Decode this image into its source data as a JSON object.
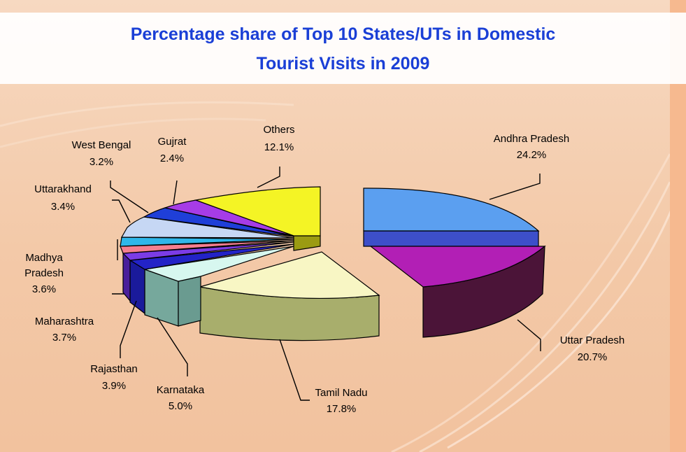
{
  "title": {
    "line1": "Percentage share of Top 10 States/UTs in Domestic",
    "line2": "Tourist Visits in 2009"
  },
  "chart_data": {
    "type": "pie",
    "title": "Percentage share of Top 10 States/UTs in Domestic Tourist Visits in 2009",
    "unit": "%",
    "slices": [
      {
        "name": "Andhra Pradesh",
        "value": 24.2,
        "label": "24.2%",
        "color": "#5b9ff0"
      },
      {
        "name": "Uttar Pradesh",
        "value": 20.7,
        "label": "20.7%",
        "color": "#b21fb5"
      },
      {
        "name": "Tamil Nadu",
        "value": 17.8,
        "label": "17.8%",
        "color": "#f8f6c4"
      },
      {
        "name": "Karnataka",
        "value": 5.0,
        "label": "5.0%",
        "color": "#d7f7ef"
      },
      {
        "name": "Rajasthan",
        "value": 3.9,
        "label": "3.9%",
        "color": "#2323c7"
      },
      {
        "name": "Maharashtra",
        "value": 3.7,
        "label": "3.7%",
        "color": "#7b3ce6"
      },
      {
        "name": "Madhya Pradesh",
        "value": 3.6,
        "label": "3.6%",
        "color": "#f57f8f"
      },
      {
        "name": "Uttarakhand",
        "value": 3.4,
        "label": "3.4%",
        "color": "#2fb7ea"
      },
      {
        "name": "West Bengal",
        "value": 3.2,
        "label": "3.2%",
        "color": "#c6d7f4"
      },
      {
        "name": "Gujrat",
        "value": 2.4,
        "label": "2.4%",
        "color": "#1f3fd8"
      },
      {
        "name": "Others",
        "value": 12.1,
        "label": "12.1%",
        "color": "#f4f425"
      }
    ]
  }
}
